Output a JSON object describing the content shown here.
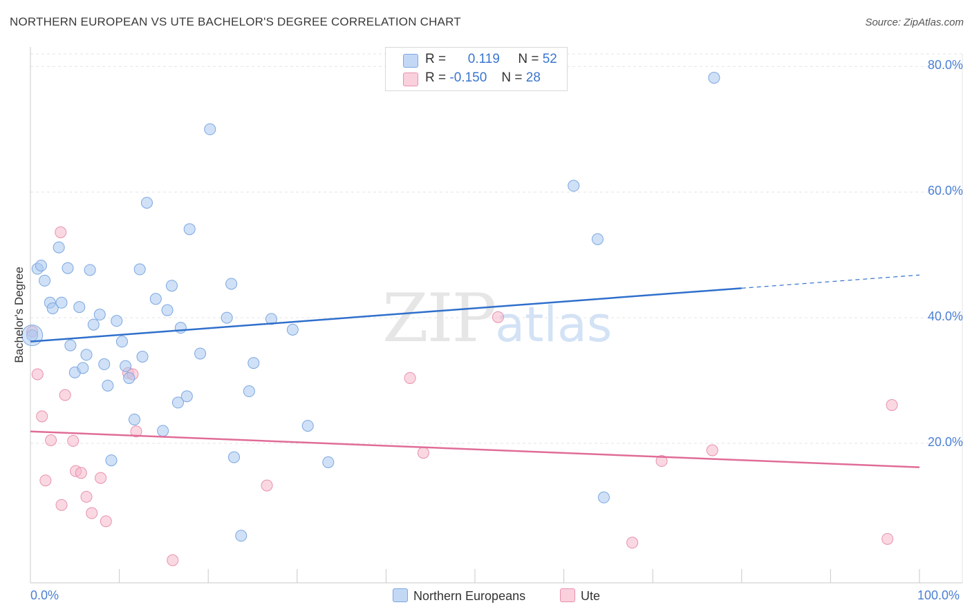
{
  "header": {
    "title": "NORTHERN EUROPEAN VS UTE BACHELOR'S DEGREE CORRELATION CHART",
    "source": "Source: ZipAtlas.com"
  },
  "legend": {
    "rows": [
      {
        "r_label": "R =",
        "r_value": "0.119",
        "n_label": "N =",
        "n_value": "52",
        "color": "#a9c8f0"
      },
      {
        "r_label": "R =",
        "r_value": "-0.150",
        "n_label": "N =",
        "n_value": "28",
        "color": "#f5b8cb"
      }
    ],
    "series_names": [
      "Northern Europeans",
      "Ute"
    ]
  },
  "watermark": {
    "zip": "ZIP",
    "atlas": "atlas"
  },
  "chart_data": {
    "type": "scatter",
    "title": "NORTHERN EUROPEAN VS UTE BACHELOR'S DEGREE CORRELATION CHART",
    "xlabel": "",
    "ylabel": "Bachelor's Degree",
    "xlim": [
      0,
      100
    ],
    "ylim": [
      0,
      82
    ],
    "x_tick_labels": [
      "0.0%",
      "100.0%"
    ],
    "y_ticks": [
      20,
      40,
      60,
      80
    ],
    "y_tick_labels": [
      "20.0%",
      "40.0%",
      "60.0%",
      "80.0%"
    ],
    "grid": true,
    "series": [
      {
        "name": "Northern Europeans",
        "color": "#a9c8f0",
        "stroke": "#7aa6e0",
        "line_color": "#2f6fcc",
        "trend": {
          "x0": 0,
          "y0": 36.2,
          "x1": 80,
          "y1": 44.7,
          "dashed_to": 100,
          "dashed_y": 46.8
        },
        "points": [
          [
            0.2,
            37.2
          ],
          [
            0.8,
            47.8
          ],
          [
            1.2,
            48.3
          ],
          [
            1.6,
            45.9
          ],
          [
            2.2,
            42.4
          ],
          [
            2.5,
            41.5
          ],
          [
            3.2,
            51.2
          ],
          [
            3.5,
            42.4
          ],
          [
            4.2,
            47.9
          ],
          [
            4.5,
            35.6
          ],
          [
            5.0,
            31.3
          ],
          [
            5.5,
            41.7
          ],
          [
            5.9,
            32.0
          ],
          [
            6.3,
            34.1
          ],
          [
            6.7,
            47.6
          ],
          [
            7.1,
            38.9
          ],
          [
            7.8,
            40.5
          ],
          [
            8.3,
            32.6
          ],
          [
            8.7,
            29.2
          ],
          [
            9.1,
            17.3
          ],
          [
            9.7,
            39.5
          ],
          [
            10.3,
            36.2
          ],
          [
            10.7,
            32.3
          ],
          [
            11.1,
            30.4
          ],
          [
            11.7,
            23.8
          ],
          [
            12.3,
            47.7
          ],
          [
            12.6,
            33.8
          ],
          [
            13.1,
            58.3
          ],
          [
            14.1,
            43.0
          ],
          [
            15.4,
            41.2
          ],
          [
            15.9,
            45.1
          ],
          [
            16.6,
            26.5
          ],
          [
            16.9,
            38.4
          ],
          [
            17.6,
            27.5
          ],
          [
            17.9,
            54.1
          ],
          [
            19.1,
            34.3
          ],
          [
            20.2,
            70.0
          ],
          [
            22.1,
            40.0
          ],
          [
            22.6,
            45.4
          ],
          [
            22.9,
            17.8
          ],
          [
            23.7,
            5.3
          ],
          [
            25.1,
            32.8
          ],
          [
            24.6,
            28.3
          ],
          [
            27.1,
            39.8
          ],
          [
            29.5,
            38.1
          ],
          [
            31.2,
            22.8
          ],
          [
            33.5,
            17.0
          ],
          [
            63.8,
            52.5
          ],
          [
            61.1,
            61.0
          ],
          [
            76.9,
            78.2
          ],
          [
            64.5,
            11.4
          ],
          [
            14.9,
            22.0
          ]
        ]
      },
      {
        "name": "Ute",
        "color": "#f5b8cb",
        "stroke": "#e890ad",
        "line_color": "#e06c97",
        "trend": {
          "x0": 0,
          "y0": 21.9,
          "x1": 100,
          "y1": 16.2
        },
        "points": [
          [
            0.2,
            37.8
          ],
          [
            0.8,
            31.0
          ],
          [
            1.3,
            24.3
          ],
          [
            1.7,
            14.1
          ],
          [
            2.3,
            20.5
          ],
          [
            3.4,
            53.6
          ],
          [
            3.5,
            10.2
          ],
          [
            3.9,
            27.7
          ],
          [
            4.8,
            20.4
          ],
          [
            5.1,
            15.6
          ],
          [
            5.7,
            15.3
          ],
          [
            6.3,
            11.5
          ],
          [
            6.9,
            8.9
          ],
          [
            7.9,
            14.5
          ],
          [
            8.5,
            7.6
          ],
          [
            11.0,
            31.2
          ],
          [
            11.5,
            31.0
          ],
          [
            11.9,
            21.9
          ],
          [
            16.0,
            1.4
          ],
          [
            26.6,
            13.3
          ],
          [
            42.7,
            30.4
          ],
          [
            44.2,
            18.5
          ],
          [
            52.6,
            40.1
          ],
          [
            67.7,
            4.2
          ],
          [
            71.0,
            17.2
          ],
          [
            76.7,
            18.9
          ],
          [
            96.4,
            4.8
          ],
          [
            96.9,
            26.1
          ]
        ]
      }
    ]
  }
}
